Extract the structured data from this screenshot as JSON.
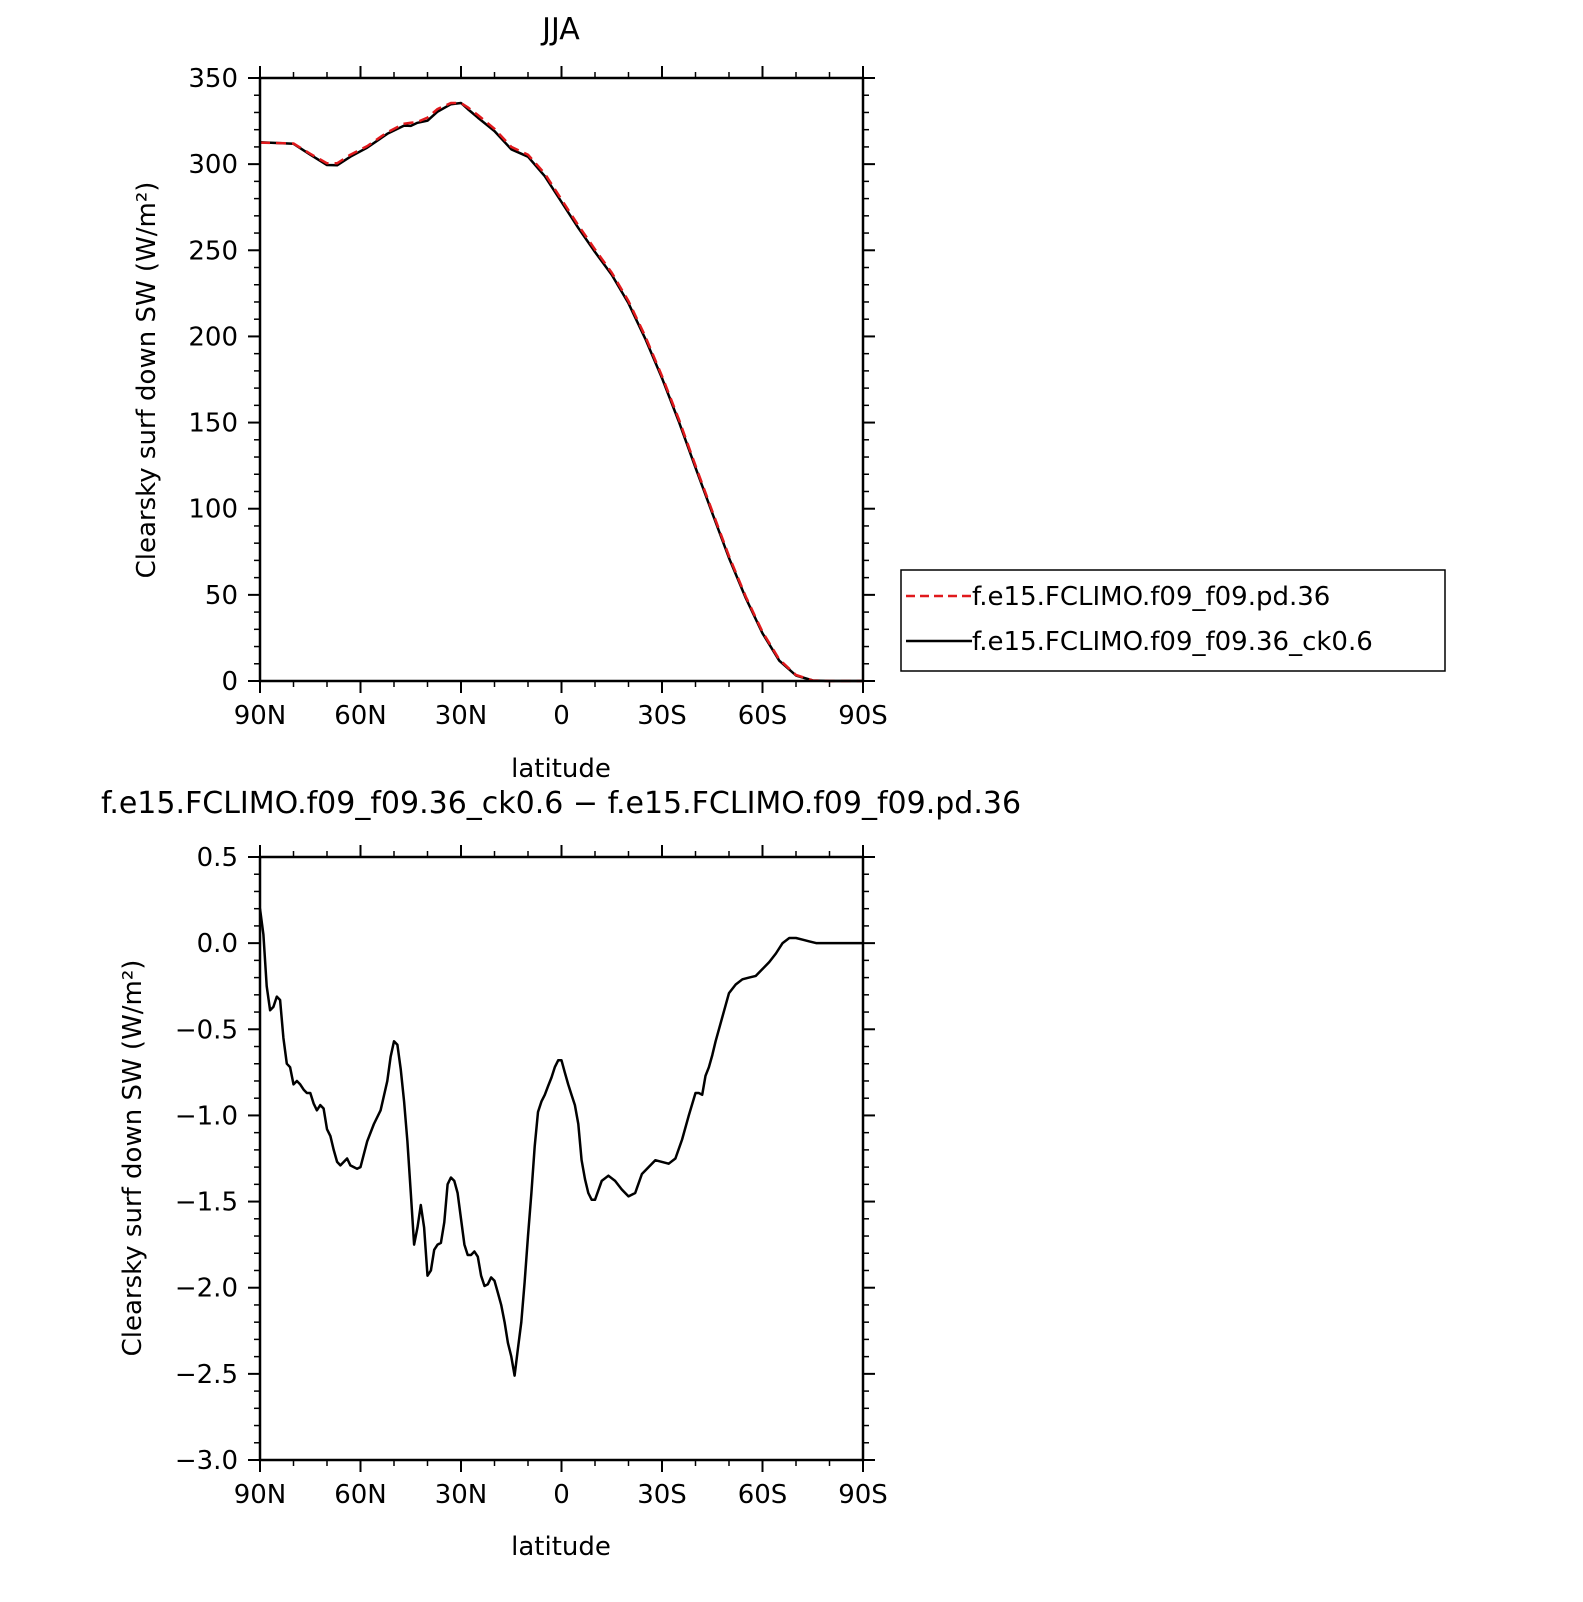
{
  "chart_data": [
    {
      "type": "line",
      "title": "JJA",
      "xlabel": "latitude",
      "ylabel": "Clearsky surf down SW (W/m²)",
      "x_tick_labels": [
        "90N",
        "60N",
        "30N",
        "0",
        "30S",
        "60S",
        "90S"
      ],
      "x_ticks": [
        90,
        60,
        30,
        0,
        -30,
        -60,
        -90
      ],
      "xlim": [
        90,
        -90
      ],
      "ylim": [
        0,
        350
      ],
      "y_ticks": [
        0,
        50,
        100,
        150,
        200,
        250,
        300,
        350
      ],
      "y_tick_labels": [
        "0",
        "50",
        "100",
        "150",
        "200",
        "250",
        "300",
        "350"
      ],
      "legend_position": "right",
      "legend": [
        "f.e15.FCLIMO.f09_f09.pd.36",
        "f.e15.FCLIMO.f09_f09.36_ck0.6"
      ],
      "x": [
        90,
        80,
        75,
        70,
        67,
        63,
        58,
        52,
        47,
        45,
        43,
        40,
        37,
        33,
        30,
        28,
        25,
        20,
        15,
        10,
        5,
        0,
        -5,
        -10,
        -15,
        -20,
        -25,
        -30,
        -35,
        -40,
        -45,
        -50,
        -55,
        -60,
        -65,
        -70,
        -75,
        -80,
        -85,
        -90
      ],
      "series": [
        {
          "name": "f.e15.FCLIMO.f09_f09.pd.36",
          "color": "#e0191c",
          "dash": true,
          "values": [
            312.5,
            312,
            306,
            300.5,
            300.5,
            305.5,
            310.5,
            318.5,
            323.5,
            324,
            324.5,
            327,
            332,
            335.5,
            335.5,
            333,
            328.5,
            320.5,
            310,
            305.5,
            294.5,
            279.5,
            264.5,
            250.5,
            237,
            220.5,
            200,
            177,
            152,
            125,
            98.5,
            72.5,
            49,
            28.5,
            12.5,
            3.5,
            0.3,
            0,
            0,
            0
          ]
        },
        {
          "name": "f.e15.FCLIMO.f09_f09.36_ck0.6",
          "color": "#000000",
          "dash": false,
          "values": [
            312.7,
            311.8,
            305.5,
            299.5,
            299.3,
            304.3,
            309.6,
            317.6,
            322.4,
            322.2,
            324,
            325.2,
            330.5,
            334.8,
            335.5,
            332,
            327,
            319.2,
            308.6,
            304.3,
            293,
            278,
            263,
            249,
            235.7,
            219.2,
            198.6,
            175.8,
            150.6,
            123.8,
            97.4,
            71.4,
            48.1,
            27.7,
            11.8,
            3.2,
            0.3,
            0,
            0,
            0
          ]
        }
      ]
    },
    {
      "type": "line",
      "title": "f.e15.FCLIMO.f09_f09.36_ck0.6 − f.e15.FCLIMO.f09_f09.pd.36",
      "xlabel": "latitude",
      "ylabel": "Clearsky surf down SW (W/m²)",
      "x_tick_labels": [
        "90N",
        "60N",
        "30N",
        "0",
        "30S",
        "60S",
        "90S"
      ],
      "x_ticks": [
        90,
        60,
        30,
        0,
        -30,
        -60,
        -90
      ],
      "xlim": [
        90,
        -90
      ],
      "ylim": [
        -3.0,
        0.5
      ],
      "y_ticks": [
        -3.0,
        -2.5,
        -2.0,
        -1.5,
        -1.0,
        -0.5,
        0.0,
        0.5
      ],
      "y_tick_labels": [
        "−3.0",
        "−2.5",
        "−2.0",
        "−1.5",
        "−1.0",
        "−0.5",
        "0.0",
        "0.5"
      ],
      "series": [
        {
          "color": "#000000",
          "x": [
            90,
            89,
            88,
            87,
            86,
            85,
            84,
            83,
            82,
            81,
            80,
            79,
            78,
            77,
            76,
            75,
            74,
            73,
            72,
            71,
            70,
            69,
            68,
            67,
            66,
            65,
            64,
            63,
            62,
            61,
            60,
            58,
            56,
            54,
            52,
            51,
            50,
            49,
            48,
            47,
            46,
            45,
            44,
            43,
            42,
            41,
            40,
            39,
            38,
            37,
            36,
            35,
            34,
            33,
            32,
            31,
            30,
            29,
            28,
            27,
            26,
            25,
            24,
            23,
            22,
            21,
            20,
            19,
            18,
            17,
            16,
            15,
            14,
            13,
            12,
            11,
            10,
            9,
            8,
            7,
            6,
            5,
            4,
            3,
            2,
            1,
            0,
            -1,
            -2,
            -3,
            -4,
            -5,
            -6,
            -7,
            -8,
            -9,
            -10,
            -12,
            -14,
            -16,
            -18,
            -20,
            -22,
            -24,
            -26,
            -28,
            -30,
            -32,
            -34,
            -36,
            -38,
            -40,
            -41,
            -42,
            -43,
            -44,
            -45,
            -46,
            -48,
            -50,
            -52,
            -54,
            -56,
            -58,
            -60,
            -62,
            -64,
            -66,
            -68,
            -70,
            -72,
            -74,
            -76,
            -78,
            -80,
            -85,
            -90
          ],
          "values": [
            0.2,
            0.05,
            -0.25,
            -0.39,
            -0.37,
            -0.31,
            -0.33,
            -0.55,
            -0.7,
            -0.72,
            -0.82,
            -0.8,
            -0.82,
            -0.85,
            -0.87,
            -0.87,
            -0.93,
            -0.97,
            -0.94,
            -0.96,
            -1.08,
            -1.12,
            -1.2,
            -1.27,
            -1.29,
            -1.27,
            -1.25,
            -1.29,
            -1.3,
            -1.31,
            -1.3,
            -1.15,
            -1.05,
            -0.97,
            -0.8,
            -0.66,
            -0.57,
            -0.59,
            -0.73,
            -0.92,
            -1.15,
            -1.45,
            -1.75,
            -1.65,
            -1.52,
            -1.65,
            -1.93,
            -1.9,
            -1.78,
            -1.75,
            -1.74,
            -1.62,
            -1.4,
            -1.36,
            -1.38,
            -1.45,
            -1.6,
            -1.75,
            -1.81,
            -1.81,
            -1.79,
            -1.82,
            -1.93,
            -1.99,
            -1.98,
            -1.94,
            -1.96,
            -2.03,
            -2.1,
            -2.2,
            -2.32,
            -2.4,
            -2.51,
            -2.35,
            -2.2,
            -1.97,
            -1.7,
            -1.45,
            -1.18,
            -0.98,
            -0.92,
            -0.88,
            -0.83,
            -0.78,
            -0.72,
            -0.68,
            -0.68,
            -0.75,
            -0.82,
            -0.88,
            -0.94,
            -1.05,
            -1.26,
            -1.37,
            -1.45,
            -1.49,
            -1.49,
            -1.38,
            -1.35,
            -1.38,
            -1.43,
            -1.47,
            -1.45,
            -1.34,
            -1.3,
            -1.26,
            -1.27,
            -1.28,
            -1.25,
            -1.14,
            -1.0,
            -0.87,
            -0.87,
            -0.88,
            -0.77,
            -0.72,
            -0.65,
            -0.57,
            -0.43,
            -0.29,
            -0.24,
            -0.21,
            -0.2,
            -0.19,
            -0.15,
            -0.11,
            -0.06,
            0.0,
            0.03,
            0.03,
            0.02,
            0.01,
            0.0,
            0.0,
            0.0,
            0.0,
            0.0
          ]
        }
      ]
    }
  ]
}
